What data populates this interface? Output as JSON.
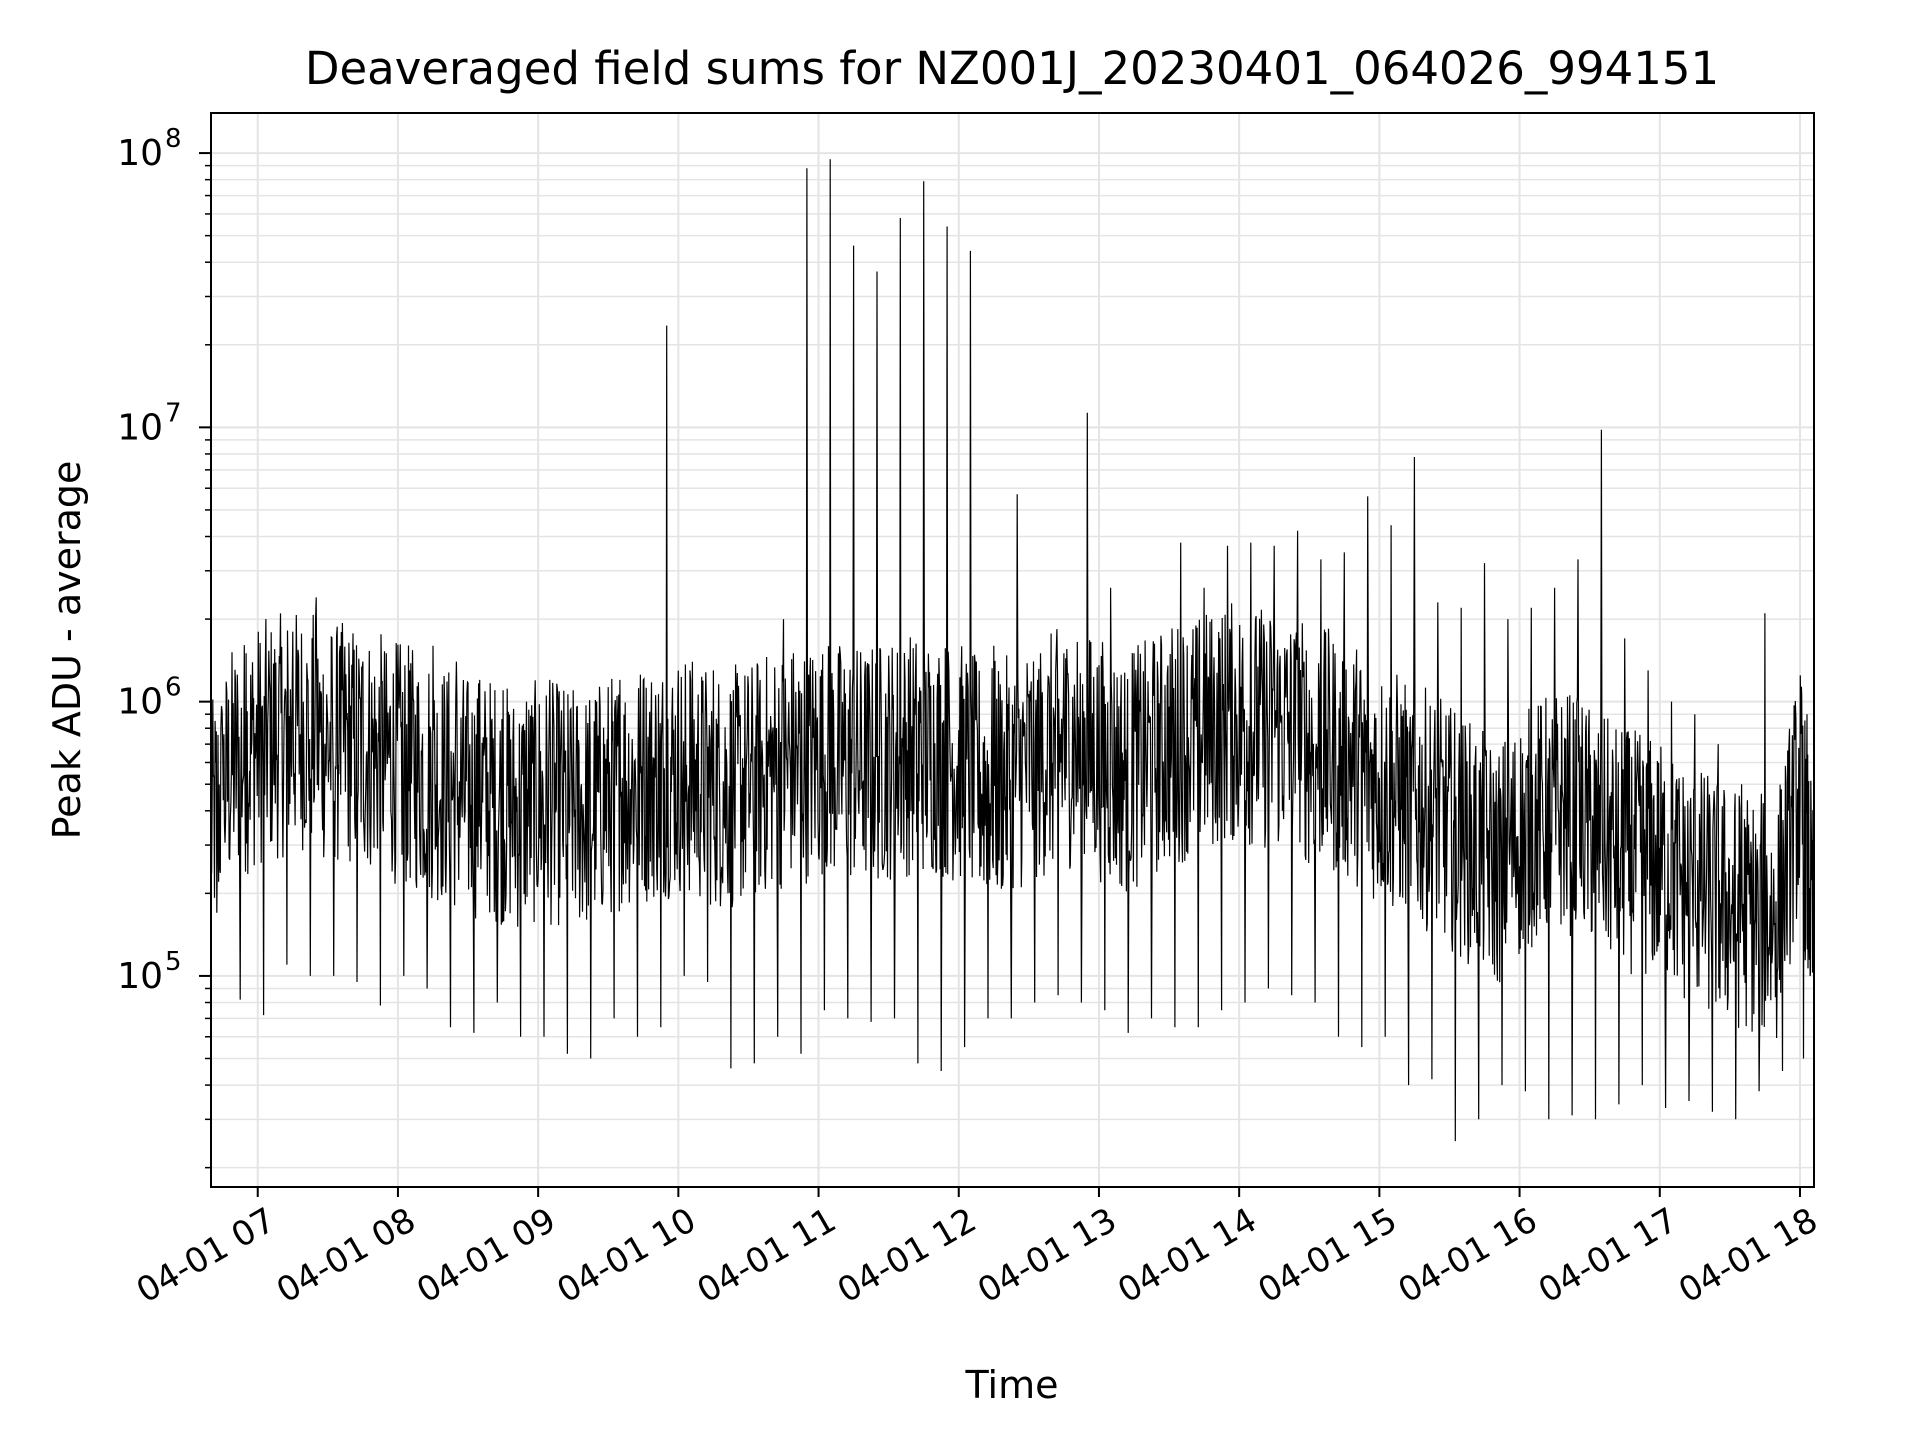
{
  "chart_data": {
    "type": "line",
    "title": "Deaveraged field sums for NZ001J_20230401_064026_994151",
    "xlabel": "Time",
    "ylabel": "Peak ADU - average",
    "yscale": "log",
    "ylim": [
      17000,
      140000000
    ],
    "xlim": [
      "2023-04-01 06:40",
      "2023-04-01 18:06"
    ],
    "grid": true,
    "x_ticks": [
      {
        "value": "2023-04-01 07:00",
        "label": "04-01 07"
      },
      {
        "value": "2023-04-01 08:00",
        "label": "04-01 08"
      },
      {
        "value": "2023-04-01 09:00",
        "label": "04-01 09"
      },
      {
        "value": "2023-04-01 10:00",
        "label": "04-01 10"
      },
      {
        "value": "2023-04-01 11:00",
        "label": "04-01 11"
      },
      {
        "value": "2023-04-01 12:00",
        "label": "04-01 12"
      },
      {
        "value": "2023-04-01 13:00",
        "label": "04-01 13"
      },
      {
        "value": "2023-04-01 14:00",
        "label": "04-01 14"
      },
      {
        "value": "2023-04-01 15:00",
        "label": "04-01 15"
      },
      {
        "value": "2023-04-01 16:00",
        "label": "04-01 16"
      },
      {
        "value": "2023-04-01 17:00",
        "label": "04-01 17"
      },
      {
        "value": "2023-04-01 18:00",
        "label": "04-01 18"
      }
    ],
    "y_ticks": [
      {
        "value": 100000,
        "base": "10",
        "exp": "5"
      },
      {
        "value": 1000000,
        "base": "10",
        "exp": "6"
      },
      {
        "value": 10000000,
        "base": "10",
        "exp": "7"
      },
      {
        "value": 100000000,
        "base": "10",
        "exp": "8"
      }
    ],
    "series": [
      {
        "color": "#000000",
        "x": [
          "2023-04-01 06:40",
          "2023-04-01 06:50",
          "2023-04-01 07:00",
          "2023-04-01 07:10",
          "2023-04-01 07:20",
          "2023-04-01 07:30",
          "2023-04-01 07:40",
          "2023-04-01 07:50",
          "2023-04-01 08:00",
          "2023-04-01 08:10",
          "2023-04-01 08:20",
          "2023-04-01 08:30",
          "2023-04-01 08:40",
          "2023-04-01 08:50",
          "2023-04-01 09:00",
          "2023-04-01 09:10",
          "2023-04-01 09:20",
          "2023-04-01 09:30",
          "2023-04-01 09:40",
          "2023-04-01 09:50",
          "2023-04-01 10:00",
          "2023-04-01 10:10",
          "2023-04-01 10:20",
          "2023-04-01 10:30",
          "2023-04-01 10:40",
          "2023-04-01 10:50",
          "2023-04-01 11:00",
          "2023-04-01 11:10",
          "2023-04-01 11:20",
          "2023-04-01 11:30",
          "2023-04-01 11:40",
          "2023-04-01 11:50",
          "2023-04-01 12:00",
          "2023-04-01 12:10",
          "2023-04-01 12:20",
          "2023-04-01 12:30",
          "2023-04-01 12:40",
          "2023-04-01 12:50",
          "2023-04-01 13:00",
          "2023-04-01 13:10",
          "2023-04-01 13:20",
          "2023-04-01 13:30",
          "2023-04-01 13:40",
          "2023-04-01 13:50",
          "2023-04-01 14:00",
          "2023-04-01 14:10",
          "2023-04-01 14:20",
          "2023-04-01 14:30",
          "2023-04-01 14:40",
          "2023-04-01 14:50",
          "2023-04-01 15:00",
          "2023-04-01 15:10",
          "2023-04-01 15:20",
          "2023-04-01 15:30",
          "2023-04-01 15:40",
          "2023-04-01 15:50",
          "2023-04-01 16:00",
          "2023-04-01 16:10",
          "2023-04-01 16:20",
          "2023-04-01 16:30",
          "2023-04-01 16:40",
          "2023-04-01 16:50",
          "2023-04-01 17:00",
          "2023-04-01 17:10",
          "2023-04-01 17:20",
          "2023-04-01 17:30",
          "2023-04-01 17:40",
          "2023-04-01 17:50",
          "2023-04-01 18:00",
          "2023-04-01 18:06"
        ],
        "y_max": [
          700000,
          1500000,
          1200000,
          1800000,
          2400000,
          1500000,
          1400000,
          1500000,
          1300000,
          1600000,
          1400000,
          1200000,
          1100000,
          1000000,
          1200000,
          1100000,
          1000000,
          1200000,
          1200000,
          23500000,
          1300000,
          1300000,
          1100000,
          1200000,
          2000000,
          88000000,
          95000000,
          46000000,
          37000000,
          58000000,
          79000000,
          54000000,
          44000000,
          1600000,
          5700000,
          1500000,
          1500000,
          11300000,
          2600000,
          1500000,
          1400000,
          3800000,
          2600000,
          3700000,
          3800000,
          3700000,
          4200000,
          3300000,
          3500000,
          5600000,
          4400000,
          7800000,
          2300000,
          2200000,
          3200000,
          2000000,
          2200000,
          2600000,
          3300000,
          9800000,
          1700000,
          1300000,
          1000000,
          900000,
          700000,
          500000,
          2100000,
          400000,
          900000,
          550000
        ],
        "y_mid": [
          350000,
          600000,
          700000,
          750000,
          800000,
          700000,
          700000,
          650000,
          600000,
          550000,
          500000,
          450000,
          450000,
          400000,
          430000,
          420000,
          400000,
          450000,
          500000,
          520000,
          550000,
          500000,
          480000,
          500000,
          560000,
          600000,
          620000,
          600000,
          580000,
          620000,
          650000,
          640000,
          600000,
          500000,
          520000,
          600000,
          650000,
          700000,
          620000,
          550000,
          600000,
          700000,
          750000,
          800000,
          850000,
          800000,
          780000,
          700000,
          650000,
          600000,
          500000,
          450000,
          400000,
          350000,
          300000,
          250000,
          320000,
          380000,
          400000,
          350000,
          300000,
          280000,
          260000,
          220000,
          200000,
          180000,
          170000,
          160000,
          500000,
          140000
        ],
        "y_min": [
          170000,
          82000,
          72000,
          110000,
          100000,
          100000,
          95000,
          78000,
          100000,
          90000,
          65000,
          62000,
          80000,
          60000,
          60000,
          52000,
          50000,
          70000,
          60000,
          65000,
          100000,
          95000,
          46000,
          48000,
          60000,
          52000,
          75000,
          70000,
          68000,
          70000,
          48000,
          45000,
          55000,
          70000,
          70000,
          80000,
          85000,
          80000,
          75000,
          62000,
          70000,
          65000,
          65000,
          75000,
          80000,
          90000,
          85000,
          80000,
          60000,
          55000,
          60000,
          40000,
          42000,
          25000,
          30000,
          40000,
          38000,
          30000,
          31000,
          30000,
          34000,
          40000,
          33000,
          35000,
          32000,
          30000,
          38000,
          45000,
          50000,
          60000
        ]
      }
    ]
  }
}
